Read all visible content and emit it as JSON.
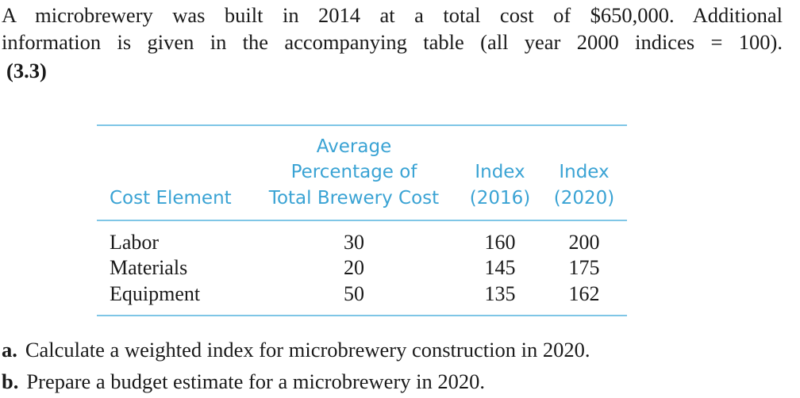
{
  "problem": {
    "intro_line1": "A microbrewery was built in 2014 at a total cost of $650,000. Additional",
    "intro_line2": "information is given in the accompanying table (all year 2000 indices = 100).",
    "reference": "(3.3)"
  },
  "table": {
    "headers": {
      "cost_element": "Cost Element",
      "avg_line1": "Average",
      "avg_line2": "Percentage of",
      "avg_line3": "Total Brewery Cost",
      "index2016_line1": "Index",
      "index2016_line2": "(2016)",
      "index2020_line1": "Index",
      "index2020_line2": "(2020)"
    },
    "rows": [
      {
        "element": "Labor",
        "percent": "30",
        "index_2016": "160",
        "index_2020": "200"
      },
      {
        "element": "Materials",
        "percent": "20",
        "index_2016": "145",
        "index_2020": "175"
      },
      {
        "element": "Equipment",
        "percent": "50",
        "index_2016": "135",
        "index_2020": "162"
      }
    ],
    "rule_color": "#7fc6e6",
    "header_color": "#3aa3d4"
  },
  "questions": [
    {
      "label": "a.",
      "text": "Calculate a weighted index for microbrewery construction in 2020."
    },
    {
      "label": "b.",
      "text": "Prepare a budget estimate for a microbrewery in 2020."
    }
  ]
}
